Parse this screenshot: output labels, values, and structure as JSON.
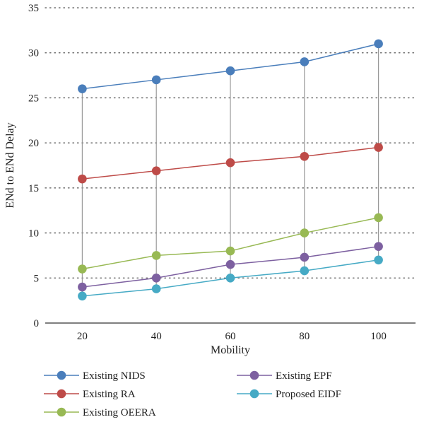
{
  "chart_data": {
    "type": "line",
    "xlabel": "Mobility",
    "ylabel": "ENd to ENd Delay",
    "x": [
      20,
      40,
      60,
      80,
      100
    ],
    "ylim": [
      0,
      35
    ],
    "yticks": [
      0,
      5,
      10,
      15,
      20,
      25,
      30,
      35
    ],
    "grid": "horizontal dotted",
    "drop_lines": true,
    "legend_position": "bottom",
    "series": [
      {
        "name": "Existing NIDS",
        "color": "#4a7ebb",
        "values": [
          26,
          27,
          28,
          29,
          31
        ]
      },
      {
        "name": "Existing RA",
        "color": "#be4b48",
        "values": [
          16,
          16.9,
          17.8,
          18.5,
          19.5
        ]
      },
      {
        "name": "Existing OEERA",
        "color": "#98b954",
        "values": [
          6,
          7.5,
          8,
          10,
          11.7
        ]
      },
      {
        "name": "Existing EPF",
        "color": "#7d60a0",
        "values": [
          4,
          5,
          6.5,
          7.3,
          8.5
        ]
      },
      {
        "name": "Proposed EIDF",
        "color": "#46aac5",
        "values": [
          3,
          3.8,
          5,
          5.8,
          7
        ]
      }
    ]
  }
}
